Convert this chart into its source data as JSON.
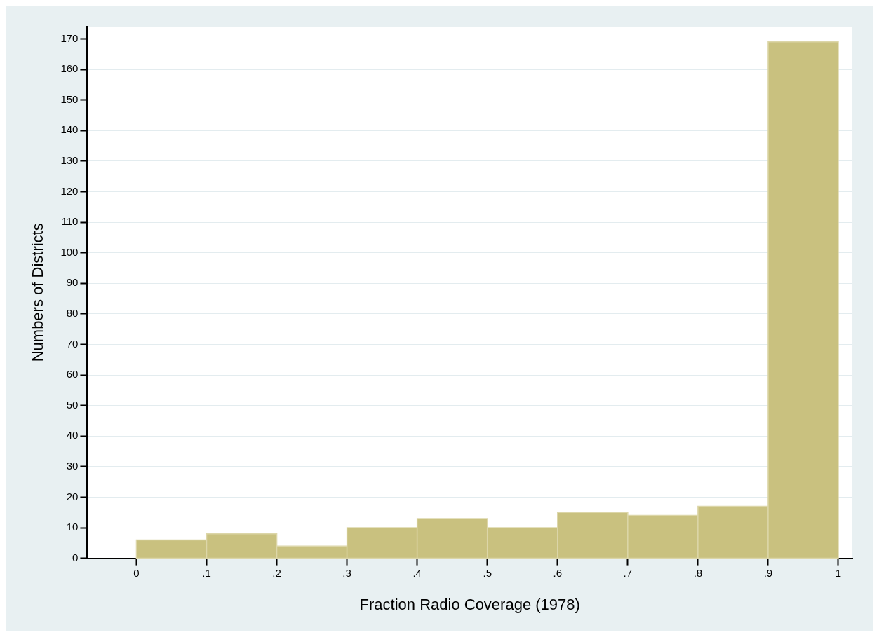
{
  "chart_data": {
    "type": "histogram",
    "xlabel": "Fraction Radio Coverage (1978)",
    "ylabel": "Numbers of Districts",
    "bins": [
      0,
      0.1,
      0.2,
      0.3,
      0.4,
      0.5,
      0.6,
      0.7,
      0.8,
      0.9,
      1
    ],
    "values": [
      6,
      8,
      4,
      10,
      13,
      10,
      15,
      14,
      17,
      169
    ],
    "color": "#c9c17f",
    "xlim": [
      -0.07,
      1.02
    ],
    "xticks": [
      {
        "value": 0,
        "label": "0"
      },
      {
        "value": 0.1,
        "label": ".1"
      },
      {
        "value": 0.2,
        "label": ".2"
      },
      {
        "value": 0.3,
        "label": ".3"
      },
      {
        "value": 0.4,
        "label": ".4"
      },
      {
        "value": 0.5,
        "label": ".5"
      },
      {
        "value": 0.6,
        "label": ".6"
      },
      {
        "value": 0.7,
        "label": ".7"
      },
      {
        "value": 0.8,
        "label": ".8"
      },
      {
        "value": 0.9,
        "label": ".9"
      },
      {
        "value": 1,
        "label": "1"
      }
    ],
    "ylim": [
      0,
      174
    ],
    "yticks": [
      0,
      10,
      20,
      30,
      40,
      50,
      60,
      70,
      80,
      90,
      100,
      110,
      120,
      130,
      140,
      150,
      160,
      170
    ],
    "grid": "y",
    "legend": false
  }
}
